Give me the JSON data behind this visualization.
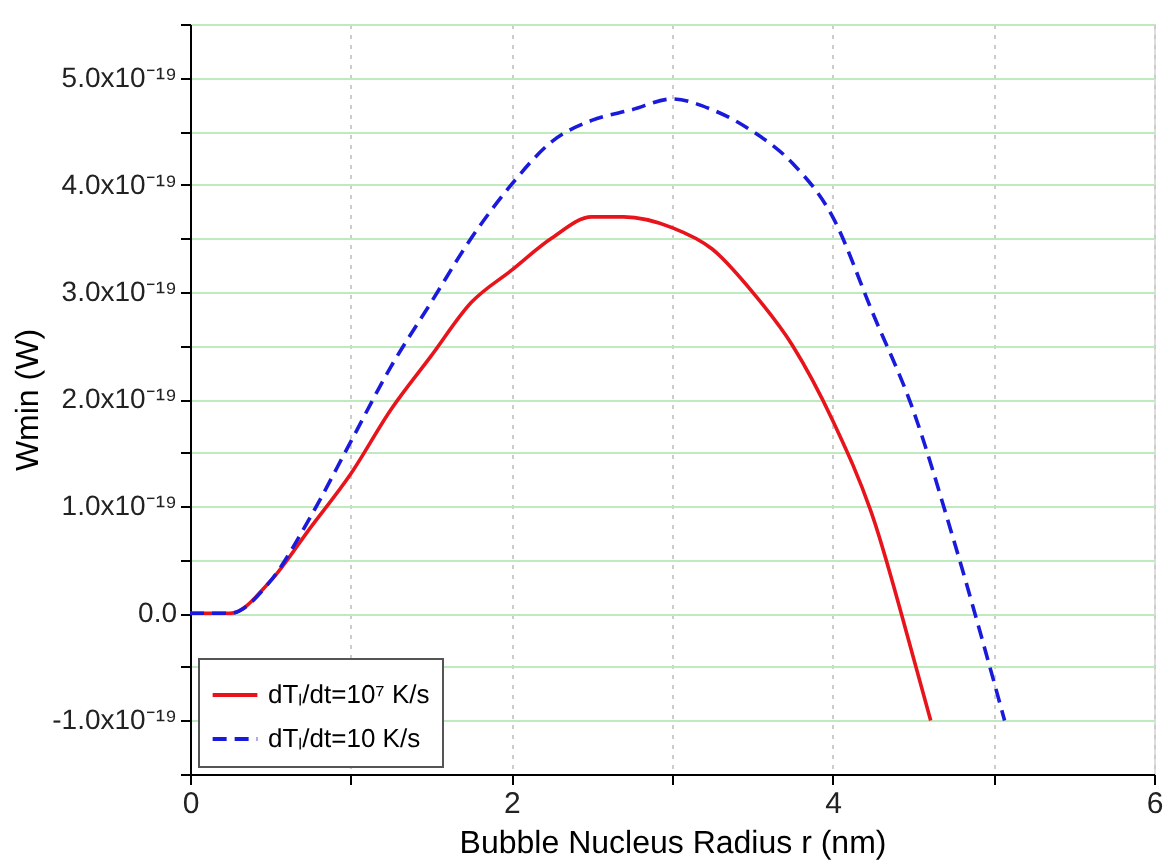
{
  "chart_data": {
    "type": "line",
    "xlabel": "Bubble Nucleus Radius r (nm)",
    "ylabel": "Wmin (W)",
    "xlim": [
      0,
      6
    ],
    "ylim": [
      -1.5e-19,
      5.5e-19
    ],
    "xticks": [
      0,
      {
        "value": 1,
        "label": null
      },
      2,
      {
        "value": 3,
        "label": null
      },
      4,
      {
        "value": 5,
        "label": null
      },
      6
    ],
    "yticks": [
      {
        "value": -1.5e-19,
        "label": null
      },
      {
        "value": -1e-19,
        "label": "-1.0x10⁻¹⁹"
      },
      {
        "value": -5e-20,
        "label": null
      },
      {
        "value": 0,
        "label": "0.0"
      },
      {
        "value": 5e-20,
        "label": null
      },
      {
        "value": 1e-19,
        "label": "1.0x10⁻¹⁹"
      },
      {
        "value": 1.5e-19,
        "label": null
      },
      {
        "value": 2e-19,
        "label": "2.0x10⁻¹⁹"
      },
      {
        "value": 2.5e-19,
        "label": null
      },
      {
        "value": 3e-19,
        "label": "3.0x10⁻¹⁹"
      },
      {
        "value": 3.5e-19,
        "label": null
      },
      {
        "value": 4e-19,
        "label": "4.0x10⁻¹⁹"
      },
      {
        "value": 4.5e-19,
        "label": null
      },
      {
        "value": 5e-19,
        "label": "5.0x10⁻¹⁹"
      },
      {
        "value": 5.5e-19,
        "label": null
      }
    ],
    "grid": true,
    "legend": "bottom left",
    "series": [
      {
        "name": "dTₗ/dt=10⁷ K/s",
        "color": "#e8141c",
        "line_style": "solid",
        "x": [
          0,
          0.25,
          0.5,
          0.75,
          1.0,
          1.25,
          1.5,
          1.75,
          2.0,
          2.25,
          2.5,
          2.7,
          3.0,
          3.25,
          3.5,
          3.75,
          4.0,
          4.25,
          4.5,
          4.61
        ],
        "values": [
          0,
          0.0,
          3e-20,
          8e-20,
          1.3e-19,
          1.9e-19,
          2.4e-19,
          2.9e-19,
          3.2e-19,
          3.5e-19,
          3.7e-19,
          3.7e-19,
          3.6e-19,
          3.4e-19,
          3e-19,
          2.5e-19,
          1.8e-19,
          9e-20,
          -4e-20,
          -1e-19
        ]
      },
      {
        "name": "dTₗ/dt=10 K/s",
        "color": "#1a1adc",
        "line_style": "dashed",
        "x": [
          0,
          0.25,
          0.5,
          0.75,
          1.0,
          1.25,
          1.5,
          1.75,
          2.0,
          2.25,
          2.5,
          2.75,
          3.0,
          3.25,
          3.5,
          3.75,
          4.0,
          4.25,
          4.5,
          4.75,
          5.07
        ],
        "values": [
          0,
          0.0,
          3e-20,
          9e-20,
          1.6e-19,
          2.3e-19,
          2.9e-19,
          3.5e-19,
          4e-19,
          4.4e-19,
          4.6e-19,
          4.7e-19,
          4.8e-19,
          4.7e-19,
          4.5e-19,
          4.2e-19,
          3.7e-19,
          2.8e-19,
          1.9e-19,
          7e-20,
          -1e-19
        ]
      }
    ]
  }
}
